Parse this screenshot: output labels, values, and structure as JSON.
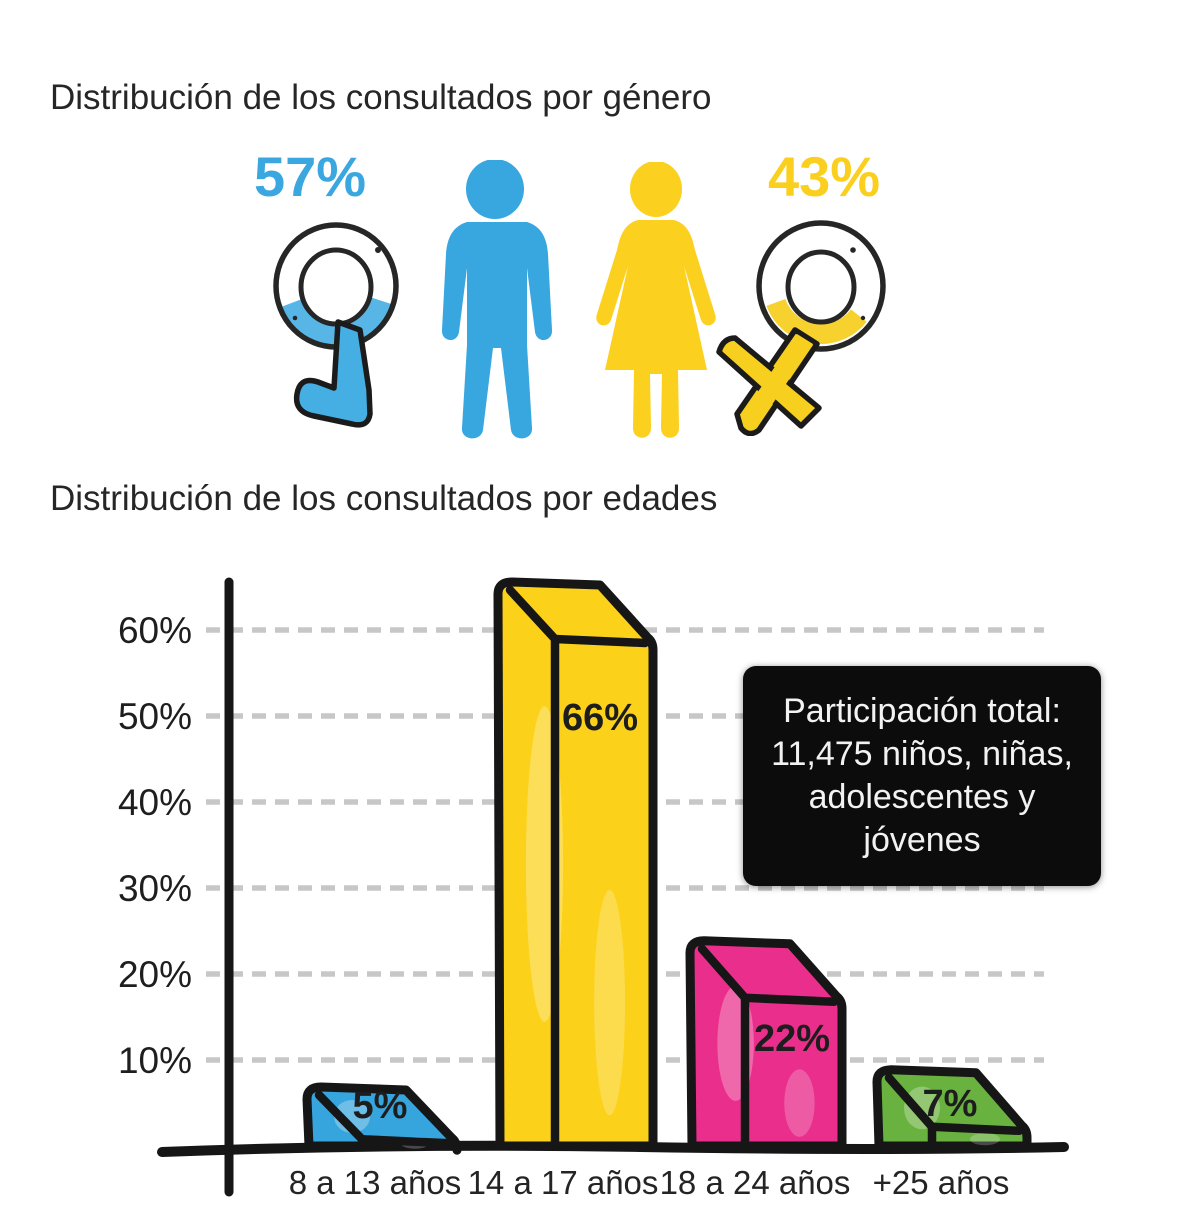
{
  "gender": {
    "title": "Distribución de los consultados por género",
    "male_pct": "57%",
    "female_pct": "43%",
    "male_color": "#3AA7DF",
    "female_color": "#FBD01E"
  },
  "ages": {
    "title": "Distribución de los consultados por edades"
  },
  "infobox": {
    "lines": [
      "Participación total:",
      "11,475 niños, niñas,",
      "adolescentes y",
      "jóvenes"
    ],
    "bg": "#0C0C0C",
    "text_color": "#F2F2F2"
  },
  "chart_data": {
    "type": "bar",
    "title": "Distribución de los consultados por edades",
    "categories": [
      "8 a 13 años",
      "14 a 17 años",
      "18 a 24 años",
      "+25 años"
    ],
    "values": [
      5,
      66,
      22,
      7
    ],
    "labels": [
      "5%",
      "66%",
      "22%",
      "7%"
    ],
    "bar_colors": [
      "#36A5DE",
      "#FCD11A",
      "#EA2E8C",
      "#6AB23F"
    ],
    "xlabel": "",
    "ylabel": "",
    "y_ticks": [
      "10%",
      "20%",
      "30%",
      "40%",
      "50%",
      "60%"
    ],
    "ylim": [
      0,
      70
    ],
    "grid": "dashed-horizontal-gray",
    "legend": "none",
    "annotation": "Participación total: 11,475 niños, niñas, adolescentes y jóvenes"
  }
}
